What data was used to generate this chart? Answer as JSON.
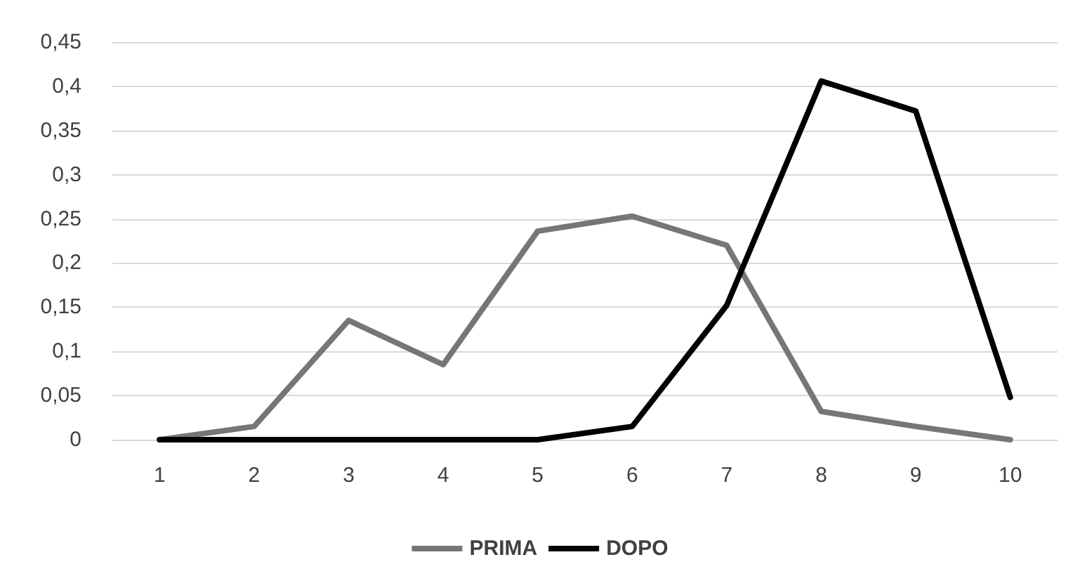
{
  "chart_data": {
    "type": "line",
    "categories": [
      "1",
      "2",
      "3",
      "4",
      "5",
      "6",
      "7",
      "8",
      "9",
      "10"
    ],
    "series": [
      {
        "name": "PRIMA",
        "color": "#767676",
        "values": [
          0,
          0.015,
          0.135,
          0.085,
          0.236,
          0.253,
          0.22,
          0.032,
          0.015,
          0
        ]
      },
      {
        "name": "DOPO",
        "color": "#000000",
        "values": [
          0,
          0,
          0,
          0,
          0,
          0.015,
          0.152,
          0.406,
          0.372,
          0.048
        ]
      }
    ],
    "ylim": [
      0,
      0.45
    ],
    "yticks": [
      {
        "value": 0,
        "label": "0"
      },
      {
        "value": 0.05,
        "label": "0,05"
      },
      {
        "value": 0.1,
        "label": "0,1"
      },
      {
        "value": 0.15,
        "label": "0,15"
      },
      {
        "value": 0.2,
        "label": "0,2"
      },
      {
        "value": 0.25,
        "label": "0,25"
      },
      {
        "value": 0.3,
        "label": "0,3"
      },
      {
        "value": 0.35,
        "label": "0,35"
      },
      {
        "value": 0.4,
        "label": "0,4"
      },
      {
        "value": 0.45,
        "label": "0,45"
      }
    ],
    "grid": "y",
    "legend": "bottom",
    "marker": "none",
    "line_style": "solid"
  }
}
